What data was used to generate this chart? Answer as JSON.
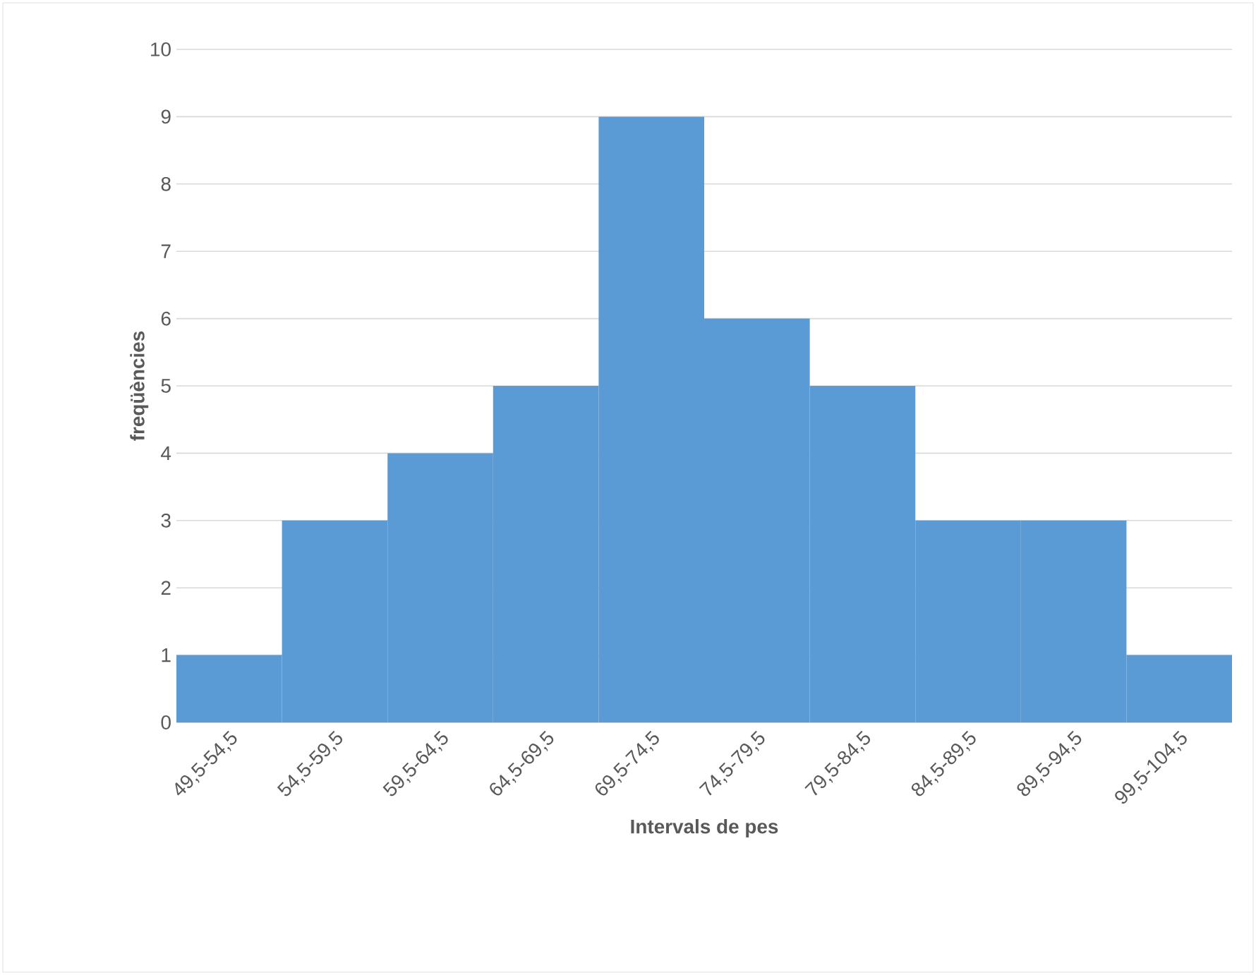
{
  "chart_data": {
    "type": "bar",
    "xlabel": "Intervals de pes",
    "ylabel": "freqüències",
    "categories": [
      "49,5-54,5",
      "54,5-59,5",
      "59,5-64,5",
      "64,5-69,5",
      "69,5-74,5",
      "74,5-79,5",
      "79,5-84,5",
      "84,5-89,5",
      "89,5-94,5",
      "99,5-104,5"
    ],
    "values": [
      1,
      3,
      4,
      5,
      9,
      6,
      5,
      3,
      3,
      1
    ],
    "color": "#5b9bd5",
    "ylim": [
      0,
      10
    ],
    "yticks": [
      0,
      1,
      2,
      3,
      4,
      5,
      6,
      7,
      8,
      9,
      10
    ],
    "grid": "y"
  }
}
